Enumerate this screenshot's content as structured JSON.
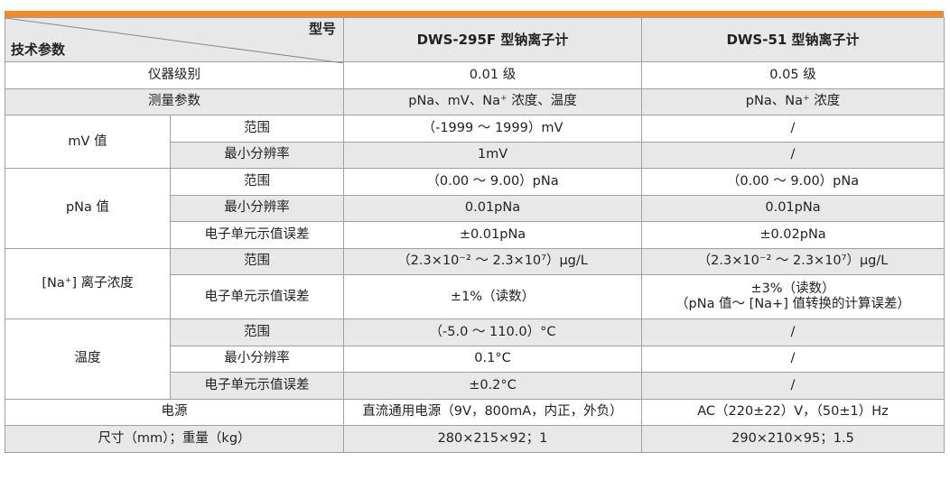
{
  "header": {
    "model_label": "型号",
    "param_label": "技术参数",
    "models": [
      "DWS-295F 型钠离子计",
      "DWS-51 型钠离子计"
    ]
  },
  "rows": {
    "grade": {
      "label": "仪器级别",
      "a": "0.01 级",
      "b": "0.05 级"
    },
    "measure": {
      "label": "测量参数",
      "a": "pNa、mV、Na⁺ 浓度、温度",
      "b": "pNa、Na⁺ 浓度"
    },
    "mv": {
      "group": "mV 值",
      "range": {
        "label": "范围",
        "a": "（-1999 ～ 1999）mV",
        "b": "/"
      },
      "res": {
        "label": "最小分辨率",
        "a": "1mV",
        "b": "/"
      }
    },
    "pna": {
      "group": "pNa 值",
      "range": {
        "label": "范围",
        "a": "（0.00 ～ 9.00）pNa",
        "b": "（0.00 ～ 9.00）pNa"
      },
      "res": {
        "label": "最小分辨率",
        "a": "0.01pNa",
        "b": "0.01pNa"
      },
      "err": {
        "label": "电子单元示值误差",
        "a": "±0.01pNa",
        "b": "±0.02pNa"
      }
    },
    "na": {
      "group": "[Na⁺] 离子浓度",
      "range": {
        "label": "范围",
        "a": "（2.3×10⁻² ～ 2.3×10⁷）μg/L",
        "b": "（2.3×10⁻² ～ 2.3×10⁷）μg/L"
      },
      "err": {
        "label": "电子单元示值误差",
        "a": "±1%（读数）",
        "b1": "±3%（读数）",
        "b2": "（pNa 值～ [Na+] 值转换的计算误差）"
      }
    },
    "temp": {
      "group": "温度",
      "range": {
        "label": "范围",
        "a": "（-5.0 ～ 110.0）°C",
        "b": "/"
      },
      "res": {
        "label": "最小分辨率",
        "a": "0.1°C",
        "b": "/"
      },
      "err": {
        "label": "电子单元示值误差",
        "a": "±0.2°C",
        "b": "/"
      }
    },
    "power": {
      "label": "电源",
      "a": "直流通用电源（9V，800mA，内正，外负）",
      "b": "AC（220±22）V，（50±1）Hz"
    },
    "size": {
      "label": "尺寸（mm）；重量（kg）",
      "a": "280×215×92；1",
      "b": "290×210×95；1.5"
    }
  },
  "colors": {
    "accent": "#f28a2a",
    "row_alt": "#e8e8e8",
    "border": "#a0a0a0"
  }
}
